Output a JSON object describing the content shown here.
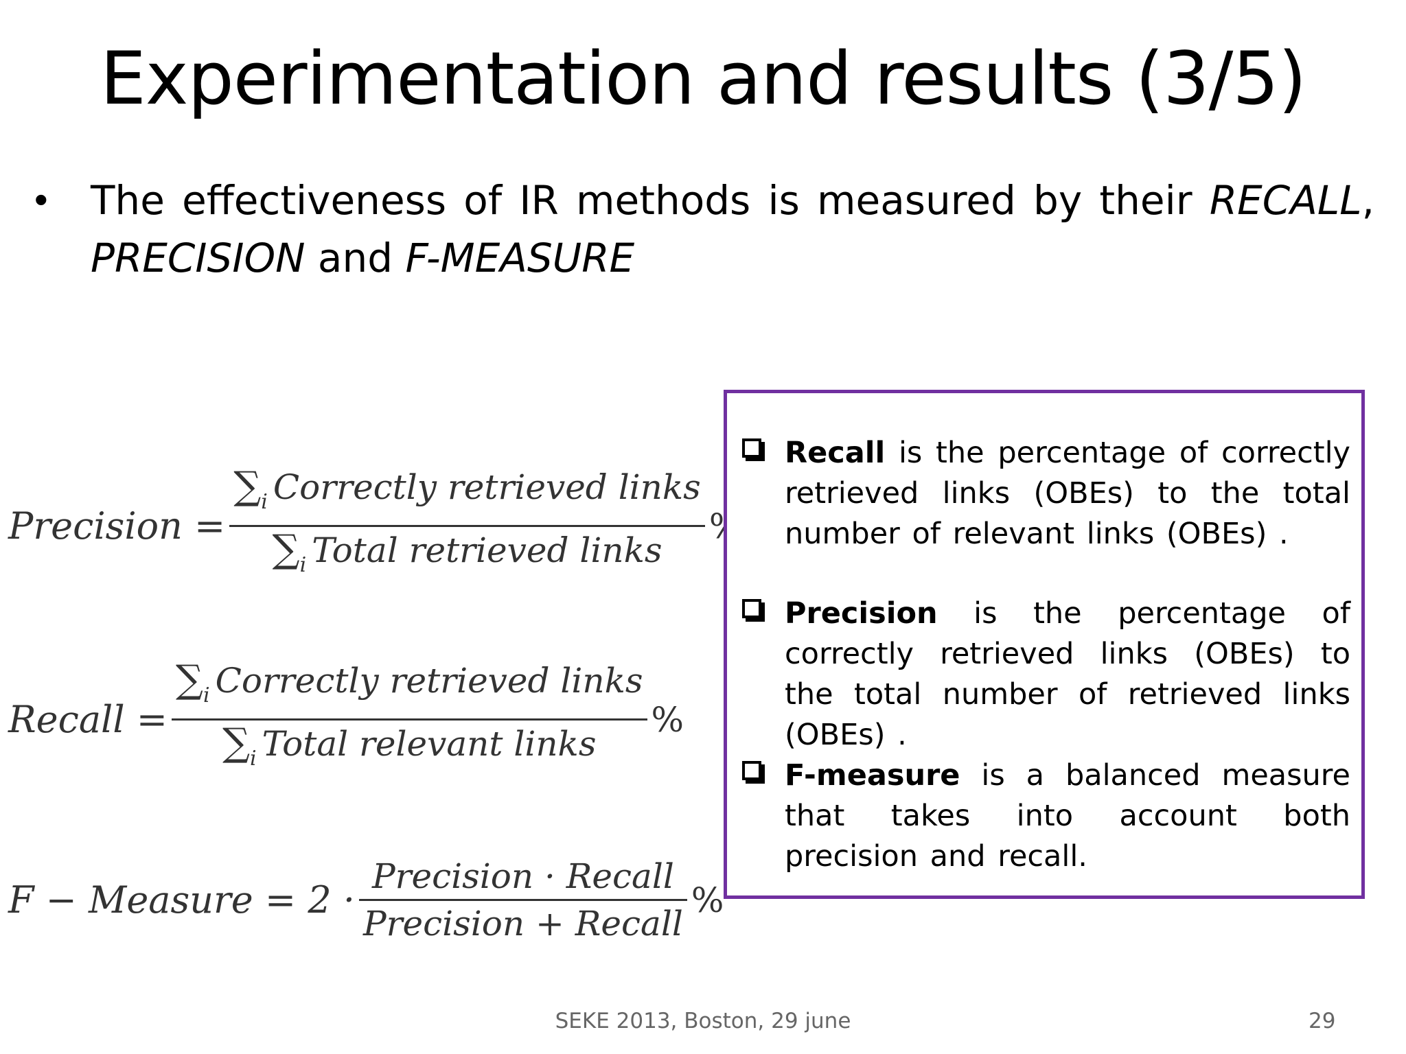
{
  "title": "Experimentation and results (3/5)",
  "bullet": {
    "symbol": "•",
    "text_1": "The effectiveness of IR methods is measured by their ",
    "recall": "RECALL",
    "comma": ",",
    "precision": "PRECISION",
    "and": " and ",
    "fmeasure": "F-MEASURE"
  },
  "formulas": {
    "precision": {
      "lhs": "Precision =",
      "sum": "∑",
      "sub": "i",
      "numerator": "Correctly retrieved links",
      "denominator": "Total retrieved links",
      "suffix": "%"
    },
    "recall": {
      "lhs": "Recall =",
      "sum": "∑",
      "sub": "i",
      "numerator": "Correctly retrieved links",
      "denominator": "Total relevant links",
      "suffix": "%"
    },
    "fmeasure": {
      "lhs": "F − Measure = 2 ·",
      "numerator": "Precision · Recall",
      "denominator": "Precision + Recall",
      "suffix": "%"
    }
  },
  "definitions": {
    "recall": {
      "term": "Recall",
      "text": " is the percentage of correctly retrieved links (OBEs) to the total number of relevant links (OBEs) ."
    },
    "precision": {
      "term": "Precision",
      "text": " is the percentage of correctly retrieved links (OBEs) to the total number of retrieved links (OBEs) ."
    },
    "fmeasure": {
      "term": "F-measure",
      "text": " is a balanced measure that takes into account both precision and recall."
    }
  },
  "colors": {
    "box_border": "#7030a0"
  },
  "footer": {
    "text": "SEKE 2013, Boston, 29 june",
    "page": "29"
  }
}
